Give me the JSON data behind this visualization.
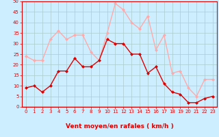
{
  "x": [
    0,
    1,
    2,
    3,
    4,
    5,
    6,
    7,
    8,
    9,
    10,
    11,
    12,
    13,
    14,
    15,
    16,
    17,
    18,
    19,
    20,
    21,
    22,
    23
  ],
  "wind_avg": [
    9,
    10,
    7,
    10,
    17,
    17,
    23,
    19,
    19,
    22,
    32,
    30,
    30,
    25,
    25,
    16,
    19,
    11,
    7,
    6,
    2,
    2,
    4,
    5
  ],
  "wind_gust": [
    24,
    22,
    22,
    32,
    36,
    32,
    34,
    34,
    26,
    22,
    35,
    49,
    46,
    40,
    37,
    43,
    27,
    34,
    16,
    17,
    9,
    5,
    13,
    13
  ],
  "avg_color": "#dd0000",
  "gust_color": "#ffaaaa",
  "bg_color": "#cceeff",
  "grid_color": "#aacccc",
  "xlabel": "Vent moyen/en rafales ( km/h )",
  "ylim": [
    0,
    50
  ],
  "yticks": [
    0,
    5,
    10,
    15,
    20,
    25,
    30,
    35,
    40,
    45,
    50
  ],
  "xticks": [
    0,
    1,
    2,
    3,
    4,
    5,
    6,
    7,
    8,
    9,
    10,
    11,
    12,
    13,
    14,
    15,
    16,
    17,
    18,
    19,
    20,
    21,
    22,
    23
  ],
  "marker": "D",
  "markersize": 2.0,
  "linewidth": 1.0,
  "tick_color": "#dd0000",
  "label_color": "#dd0000",
  "tick_fontsize": 5.0,
  "xlabel_fontsize": 6.5,
  "arrow_row": "↗"
}
